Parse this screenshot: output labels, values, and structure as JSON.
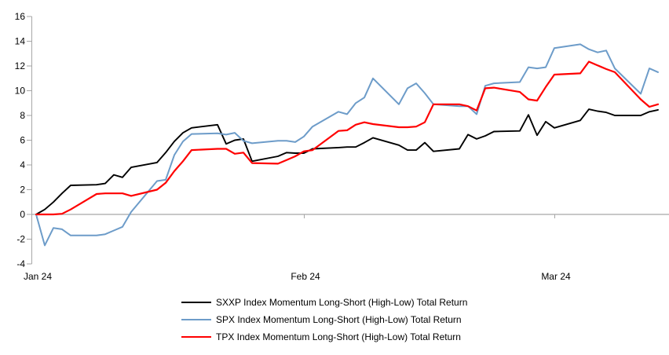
{
  "chart_data": {
    "type": "line",
    "title": "",
    "xlabel": "",
    "ylabel": "",
    "ylim": [
      -4,
      16
    ],
    "y_ticks": [
      16,
      14,
      12,
      10,
      8,
      6,
      4,
      2,
      0,
      -2,
      -4
    ],
    "grid": "zero-baseline-only",
    "legend_position": "bottom-center",
    "axis_color": "#A6A6A6",
    "text_color": "#000000",
    "x_axis": {
      "tick_labels": [
        "Jan 24",
        "Feb 24",
        "Mar 24"
      ],
      "tick_day_offsets": [
        0,
        31,
        60
      ]
    },
    "dates": [
      "2024-01-01",
      "2024-01-02",
      "2024-01-03",
      "2024-01-04",
      "2024-01-05",
      "2024-01-08",
      "2024-01-09",
      "2024-01-10",
      "2024-01-11",
      "2024-01-12",
      "2024-01-15",
      "2024-01-16",
      "2024-01-17",
      "2024-01-18",
      "2024-01-19",
      "2024-01-22",
      "2024-01-23",
      "2024-01-24",
      "2024-01-25",
      "2024-01-26",
      "2024-01-29",
      "2024-01-30",
      "2024-01-31",
      "2024-02-01",
      "2024-02-02",
      "2024-02-05",
      "2024-02-06",
      "2024-02-07",
      "2024-02-08",
      "2024-02-09",
      "2024-02-12",
      "2024-02-13",
      "2024-02-14",
      "2024-02-15",
      "2024-02-16",
      "2024-02-19",
      "2024-02-20",
      "2024-02-21",
      "2024-02-22",
      "2024-02-23",
      "2024-02-26",
      "2024-02-27",
      "2024-02-28",
      "2024-02-29",
      "2024-03-01",
      "2024-03-04",
      "2024-03-05",
      "2024-03-06",
      "2024-03-07",
      "2024-03-08",
      "2024-03-11",
      "2024-03-12",
      "2024-03-13"
    ],
    "day_offsets": [
      0,
      1,
      2,
      3,
      4,
      7,
      8,
      9,
      10,
      11,
      14,
      15,
      16,
      17,
      18,
      21,
      22,
      23,
      24,
      25,
      28,
      29,
      30,
      31,
      32,
      35,
      36,
      37,
      38,
      39,
      42,
      43,
      44,
      45,
      46,
      49,
      50,
      51,
      52,
      53,
      56,
      57,
      58,
      59,
      60,
      63,
      64,
      65,
      66,
      67,
      70,
      71,
      72
    ],
    "series": [
      {
        "name": "SXXP Index Momentum Long-Short (High-Low) Total Return",
        "color": "#000000",
        "values": [
          0.0,
          0.4,
          1.0,
          1.7,
          2.35,
          2.4,
          2.5,
          3.2,
          3.0,
          3.8,
          4.2,
          5.0,
          5.9,
          6.6,
          7.0,
          7.25,
          5.7,
          6.0,
          6.1,
          4.3,
          4.7,
          5.0,
          4.95,
          4.95,
          5.3,
          5.4,
          5.45,
          5.45,
          5.8,
          6.2,
          5.6,
          5.2,
          5.2,
          5.8,
          5.1,
          5.3,
          6.45,
          6.1,
          6.35,
          6.7,
          6.75,
          8.05,
          6.4,
          7.5,
          7.0,
          7.6,
          8.5,
          8.35,
          8.25,
          8.0,
          8.0,
          8.3,
          8.45
        ]
      },
      {
        "name": "SPX Index Momentum Long-Short (High-Low) Total Return",
        "color": "#6D9CC9",
        "values": [
          0.0,
          -2.5,
          -1.1,
          -1.2,
          -1.7,
          -1.7,
          -1.6,
          -1.3,
          -1.0,
          0.2,
          2.7,
          2.8,
          4.8,
          5.9,
          6.5,
          6.55,
          6.45,
          6.6,
          5.95,
          5.75,
          5.95,
          5.95,
          5.85,
          6.3,
          7.1,
          8.3,
          8.1,
          9.0,
          9.45,
          11.0,
          8.9,
          10.2,
          10.6,
          9.8,
          8.9,
          8.75,
          8.75,
          8.1,
          10.4,
          10.6,
          10.7,
          11.9,
          11.8,
          11.9,
          13.45,
          13.75,
          13.35,
          13.1,
          13.25,
          11.8,
          9.75,
          11.8,
          11.5
        ]
      },
      {
        "name": "TPX Index Momentum Long-Short (High-Low) Total Return",
        "color": "#FF0000",
        "values": [
          0.0,
          0.0,
          0.0,
          0.05,
          0.4,
          1.65,
          1.7,
          1.7,
          1.7,
          1.5,
          2.0,
          2.55,
          3.5,
          4.3,
          5.2,
          5.3,
          5.3,
          4.9,
          5.0,
          4.15,
          4.1,
          4.4,
          4.7,
          5.1,
          5.2,
          6.75,
          6.8,
          7.25,
          7.45,
          7.3,
          7.05,
          7.05,
          7.1,
          7.45,
          8.9,
          8.9,
          8.75,
          8.4,
          10.2,
          10.25,
          9.9,
          9.3,
          9.2,
          10.3,
          11.3,
          11.4,
          12.35,
          12.05,
          11.75,
          11.5,
          9.3,
          8.7,
          8.9
        ]
      }
    ]
  }
}
